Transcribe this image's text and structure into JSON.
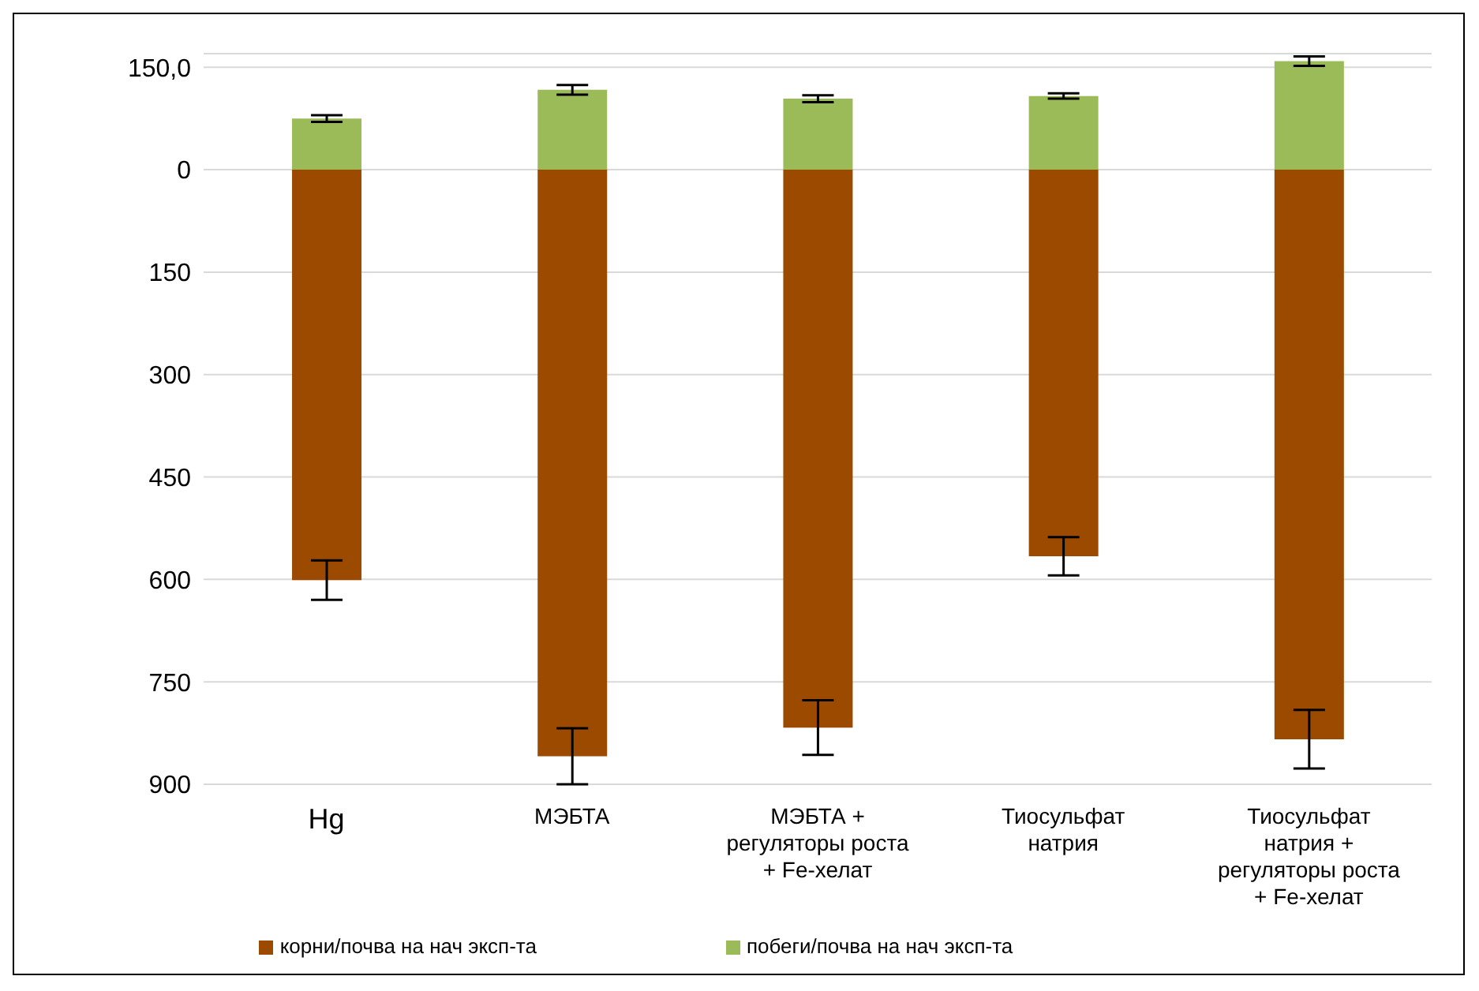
{
  "chart_data": {
    "type": "bar",
    "stacked": true,
    "categories": [
      "Hg",
      "МЭБТА",
      "МЭБТА + регуляторы роста + Fe-хелат",
      "Тиосульфат натрия",
      "Тиосульфат натрия + регуляторы роста + Fe-хелат"
    ],
    "series": [
      {
        "name": "корни/почва на нач эксп-та",
        "color": "#9c4a00",
        "values": [
          -601,
          -859,
          -817,
          -566,
          -834
        ],
        "errors": [
          29,
          41,
          40,
          28,
          43
        ]
      },
      {
        "name": "побеги/почва на нач эксп-та",
        "color": "#9bbb59",
        "values": [
          75,
          117,
          104,
          108,
          159
        ],
        "errors": [
          5,
          7,
          5,
          4,
          7
        ]
      }
    ],
    "ylim": [
      -900,
      170
    ],
    "yticks": [
      {
        "value": -900,
        "label": "900"
      },
      {
        "value": -750,
        "label": "750"
      },
      {
        "value": -600,
        "label": "600"
      },
      {
        "value": -450,
        "label": "450"
      },
      {
        "value": -300,
        "label": "300"
      },
      {
        "value": -150,
        "label": "150"
      },
      0,
      {
        "value": 150,
        "label": "150,0"
      }
    ],
    "grid": "y",
    "legend": "bottom"
  }
}
